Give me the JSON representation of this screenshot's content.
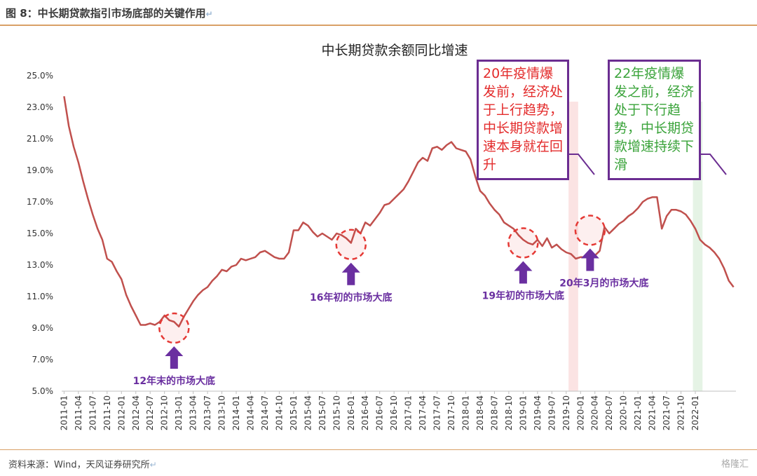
{
  "figure_title": "图 8：中长期贷款指引市场底部的关键作用",
  "source_text": "资料来源：Wind，天风证券研究所",
  "watermark_text": "格隆汇",
  "colors": {
    "line": "#c0504d",
    "annotation": "#6a2fa0",
    "circle": "#e53935",
    "box_border": "#6b2d91",
    "box_red": "#e32b2b",
    "box_green": "#3aa33a",
    "band_pink": "#fbe3e3",
    "band_green": "#e5f3e5"
  },
  "boxes": {
    "box1": "20年疫情爆发前，经济处于上行趋势，中长期贷款增速本身就在回升",
    "box2": "22年疫情爆发之前，经济处于下行趋势，中长期贷款增速持续下滑"
  },
  "chart_data": {
    "type": "line",
    "title": "中长期贷款余额同比增速",
    "y_ticks": [
      "25.0%",
      "23.0%",
      "21.0%",
      "19.0%",
      "17.0%",
      "15.0%",
      "13.0%",
      "11.0%",
      "9.0%",
      "7.0%",
      "5.0%"
    ],
    "ylim": [
      5,
      25
    ],
    "x_tick_labels": [
      "2011-01",
      "2011-04",
      "2011-07",
      "2011-10",
      "2012-01",
      "2012-04",
      "2012-07",
      "2012-10",
      "2013-01",
      "2013-04",
      "2013-07",
      "2013-10",
      "2014-01",
      "2014-04",
      "2014-07",
      "2014-10",
      "2015-01",
      "2015-04",
      "2015-07",
      "2015-10",
      "2016-01",
      "2016-04",
      "2016-07",
      "2016-10",
      "2017-01",
      "2017-04",
      "2017-07",
      "2017-10",
      "2018-01",
      "2018-04",
      "2018-07",
      "2018-10",
      "2019-01",
      "2019-04",
      "2019-07",
      "2019-10",
      "2020-01",
      "2020-04",
      "2020-07",
      "2020-10",
      "2021-01",
      "2021-04",
      "2021-07",
      "2021-10",
      "2022-01"
    ],
    "series": [
      {
        "start": "2011-01",
        "values": [
          23.7,
          21.8,
          20.5,
          19.5,
          18.3,
          17.2,
          16.2,
          15.3,
          14.6,
          13.4,
          13.2,
          12.6,
          12.1,
          11.1,
          10.4,
          9.8,
          9.2,
          9.2,
          9.3,
          9.2,
          9.4,
          9.8,
          9.5,
          9.4,
          9.1,
          9.7,
          10.2,
          10.7,
          11.1,
          11.4,
          11.6,
          12.0,
          12.3,
          12.7,
          12.6,
          12.9,
          13.0,
          13.4,
          13.3,
          13.4,
          13.5,
          13.8,
          13.9,
          13.7,
          13.5,
          13.4,
          13.4,
          13.8,
          15.2,
          15.2,
          15.7,
          15.5,
          15.1,
          14.8,
          15.0,
          14.8,
          14.6,
          15.0,
          14.9,
          14.7,
          14.4,
          15.3,
          15.0,
          15.7,
          15.5,
          15.9,
          16.3,
          16.8,
          16.9,
          17.2,
          17.5,
          17.8,
          18.3,
          18.9,
          19.5,
          19.8,
          19.6,
          20.4,
          20.5,
          20.3,
          20.6,
          20.8,
          20.4,
          20.3,
          20.2,
          19.7,
          18.6,
          17.7,
          17.4,
          16.9,
          16.5,
          16.2,
          15.7,
          15.5,
          15.3,
          14.9,
          14.6,
          14.4,
          14.3,
          14.6,
          14.2,
          14.7,
          14.1,
          14.3,
          14.0,
          13.8,
          13.7,
          13.4,
          13.5,
          13.5,
          13.6,
          13.6,
          13.9,
          15.4,
          15.0,
          15.3,
          15.6,
          15.8,
          16.1,
          16.3,
          16.6,
          17.0,
          17.2,
          17.3,
          17.3,
          15.3,
          16.1,
          16.5,
          16.5,
          16.4,
          16.2,
          15.8,
          15.3,
          14.6,
          14.3,
          14.1,
          13.8,
          13.4,
          12.8,
          12.0,
          11.6
        ]
      }
    ],
    "bands": [
      {
        "from": "2019-11",
        "to": "2019-12"
      },
      {
        "from": "2022-01",
        "to": "2022-02"
      }
    ],
    "annotations": [
      {
        "label": "12年末的市场大底",
        "at": "2012-12",
        "value": 9.0
      },
      {
        "label": "16年初的市场大底",
        "at": "2016-01",
        "value": 14.3
      },
      {
        "label": "19年初的市场大底",
        "at": "2019-01",
        "value": 14.4
      },
      {
        "label": "20年3月的市场大底",
        "at": "2020-03",
        "value": 15.2
      }
    ],
    "grid": false,
    "legend": "none"
  }
}
